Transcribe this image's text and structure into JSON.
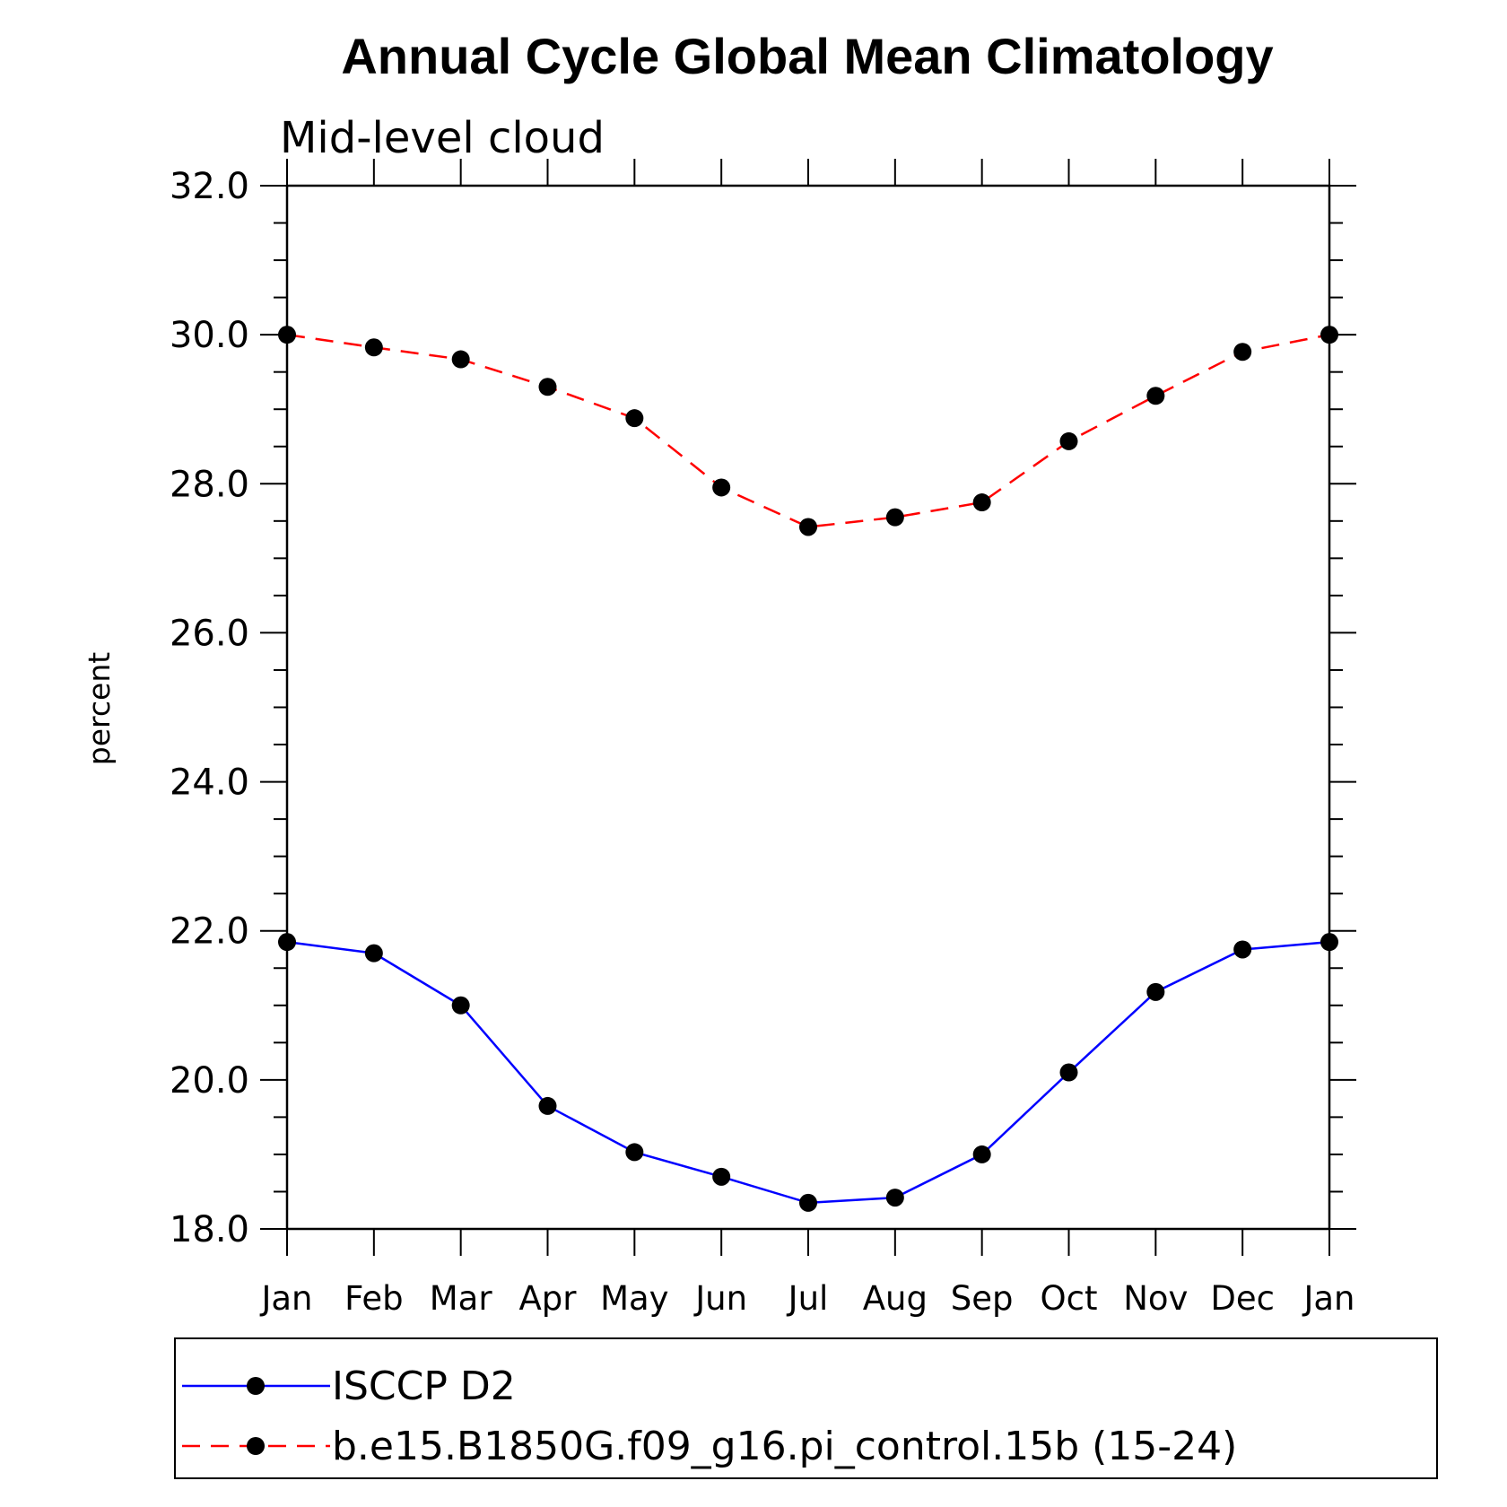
{
  "chart_data": {
    "type": "line",
    "title": "Annual Cycle Global Mean Climatology",
    "subtitle": "Mid-level cloud",
    "ylabel": "percent",
    "xlabel": "",
    "categories": [
      "Jan",
      "Feb",
      "Mar",
      "Apr",
      "May",
      "Jun",
      "Jul",
      "Aug",
      "Sep",
      "Oct",
      "Nov",
      "Dec",
      "Jan"
    ],
    "ylim": [
      18.0,
      32.0
    ],
    "y_ticks": [
      "18.0",
      "20.0",
      "22.0",
      "24.0",
      "26.0",
      "28.0",
      "30.0",
      "32.0"
    ],
    "grid": false,
    "legend_position": "bottom",
    "series": [
      {
        "name": "ISCCP D2",
        "color": "#0000ff",
        "line_style": "solid",
        "marker": "filled-circle",
        "values": [
          21.85,
          21.7,
          21.0,
          19.65,
          19.03,
          18.7,
          18.35,
          18.42,
          19.0,
          20.1,
          21.18,
          21.75,
          21.85
        ]
      },
      {
        "name": "b.e15.B1850G.f09_g16.pi_control.15b (15-24)",
        "color": "#ff0000",
        "line_style": "dashed",
        "marker": "filled-circle",
        "values": [
          30.0,
          29.83,
          29.67,
          29.3,
          28.88,
          27.95,
          27.42,
          27.55,
          27.75,
          28.57,
          29.18,
          29.77,
          30.0
        ]
      }
    ]
  }
}
